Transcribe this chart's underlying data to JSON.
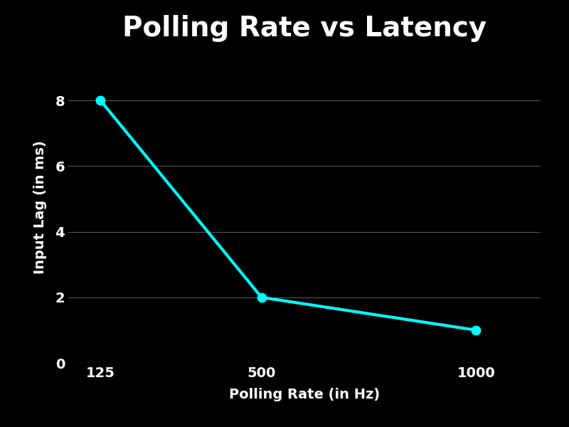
{
  "title": "Polling Rate vs Latency",
  "xlabel": "Polling Rate (in Hz)",
  "ylabel": "Input Lag (in ms)",
  "x": [
    125,
    500,
    1000
  ],
  "y": [
    8,
    2,
    1
  ],
  "line_color": "#00FFFF",
  "marker_color": "#00FFFF",
  "background_color": "#000000",
  "text_color": "#ffffff",
  "grid_color": "#555555",
  "title_fontsize": 28,
  "label_fontsize": 14,
  "tick_fontsize": 14,
  "line_width": 3,
  "marker_size": 9,
  "xlim": [
    50,
    1150
  ],
  "ylim": [
    0,
    9.5
  ],
  "yticks": [
    0,
    2,
    4,
    6,
    8
  ],
  "xticks": [
    125,
    500,
    1000
  ]
}
